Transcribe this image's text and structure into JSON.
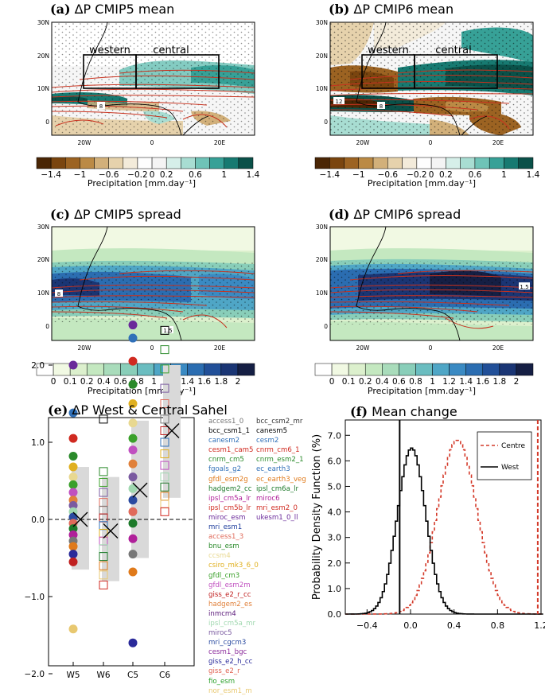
{
  "panels": {
    "a": {
      "label": "(a)",
      "title": "ΔP CMIP5 mean",
      "box_west": "western",
      "box_central": "central",
      "contour_label": "8"
    },
    "b": {
      "label": "(b)",
      "title": "ΔP CMIP6 mean",
      "box_west": "western",
      "box_central": "central",
      "contour_label_1": "12",
      "contour_label_2": "8"
    },
    "c": {
      "label": "(c)",
      "title": "ΔP CMIP5 spread",
      "contour_label_1": "8",
      "contour_label_2": "1.5"
    },
    "d": {
      "label": "(d)",
      "title": "ΔP CMIP6 spread",
      "contour_label": "1.5"
    },
    "e": {
      "label": "(e)",
      "title": "ΔP West & Central Sahel"
    },
    "f": {
      "label": "(f)",
      "title": "Mean change"
    }
  },
  "map_axes": {
    "ylabels": [
      "30N",
      "20N",
      "10N",
      "0"
    ],
    "xlabels": [
      "20W",
      "0",
      "20E"
    ]
  },
  "colorbar_mean": {
    "ticks": [
      "−1.4",
      "−1",
      "−0.6",
      "−0.2",
      "0",
      "0.2",
      "0.6",
      "1",
      "1.4"
    ],
    "label": "Precipitation [mm.day⁻¹]",
    "colors": [
      "#4a2605",
      "#7a450f",
      "#9c6322",
      "#bb8a45",
      "#d2b07a",
      "#e6d2ac",
      "#f3ebda",
      "#fdfdfd",
      "#f4f4f4",
      "#d6efe9",
      "#a8ddd2",
      "#6fc3b7",
      "#37a197",
      "#177a71",
      "#0a5149"
    ]
  },
  "colorbar_spread": {
    "ticks": [
      "0",
      "0.1",
      "0.2",
      "0.4",
      "0.6",
      "0.8",
      "1",
      "1.2",
      "1.4",
      "1.6",
      "1.8",
      "2"
    ],
    "label": "Precipitation [mm.day⁻¹]",
    "colors": [
      "#ffffff",
      "#f1f9e3",
      "#dcf0cd",
      "#c4e8c0",
      "#a9dcbb",
      "#89ceb9",
      "#6abdc0",
      "#4fa6c6",
      "#3a8ac3",
      "#2b6db1",
      "#214f98",
      "#1a3574",
      "#151f44"
    ]
  },
  "chart_data": [
    {
      "type": "scatter",
      "title": "ΔP West & Central Sahel",
      "categories": [
        "W5",
        "W6",
        "C5",
        "C6"
      ],
      "ylim": [
        -2.5,
        2.5
      ],
      "yticks": [
        "2.0",
        "1.0",
        "0.0",
        "−1.0",
        "−2.0"
      ],
      "cmip5_points": {
        "W5": [
          2.0,
          1.38,
          1.05,
          0.82,
          0.68,
          0.55,
          0.45,
          0.35,
          0.25,
          0.18,
          0.1,
          0.03,
          -0.05,
          -0.12,
          -0.2,
          -0.28,
          -0.35,
          -0.45,
          -0.55,
          -1.42
        ],
        "C5": [
          2.52,
          2.35,
          2.05,
          1.75,
          1.5,
          1.25,
          1.05,
          0.9,
          0.72,
          0.55,
          0.4,
          0.25,
          0.1,
          -0.05,
          -0.25,
          -0.45,
          -0.68,
          -1.6
        ]
      },
      "cmip6_points": {
        "W6": [
          1.3,
          0.62,
          0.48,
          0.35,
          0.22,
          0.12,
          0.02,
          -0.08,
          -0.18,
          -0.28,
          -0.38,
          -0.48,
          -0.6,
          -0.72,
          -0.85
        ],
        "C6": [
          2.45,
          2.2,
          1.95,
          1.7,
          1.5,
          1.3,
          1.15,
          1.0,
          0.85,
          0.7,
          0.55,
          0.42,
          0.3,
          0.2,
          0.1
        ]
      },
      "means": {
        "W5": 0.0,
        "W6": -0.15,
        "C5": 0.38,
        "C6": 1.15
      },
      "spread_boxes": {
        "W5": [
          -0.65,
          0.68
        ],
        "W6": [
          -0.8,
          0.55
        ],
        "C5": [
          -0.5,
          1.28
        ],
        "C6": [
          0.28,
          2.0
        ]
      }
    },
    {
      "type": "line",
      "title": "Mean change",
      "ylabel": "Probability Density Function (%)",
      "xlim": [
        -0.6,
        1.2
      ],
      "ylim": [
        0,
        7.6
      ],
      "xticks": [
        "−0.4",
        "0.0",
        "0.4",
        "0.8",
        "1.2"
      ],
      "yticks": [
        "0.0",
        "1.0",
        "2.0",
        "3.0",
        "4.0",
        "5.0",
        "6.0",
        "7.0"
      ],
      "legend_position": "top-right",
      "series": [
        {
          "name": "Centre",
          "color": "#d43a2a",
          "style": "dashed",
          "mean": 0.42,
          "sd": 0.18,
          "peak": 6.8
        },
        {
          "name": "West",
          "color": "#000000",
          "style": "solid",
          "mean": 0.0,
          "sd": 0.13,
          "peak": 6.5
        }
      ],
      "vlines": [
        {
          "x": -0.1,
          "color": "#000000"
        },
        {
          "x": 1.17,
          "color": "#d43a2a",
          "style": "dashed"
        }
      ]
    }
  ],
  "model_legend": {
    "col1": [
      {
        "name": "access1_0",
        "color": "#777777"
      },
      {
        "name": "bcc_csm1_1",
        "color": "#000000"
      },
      {
        "name": "canesm2",
        "color": "#3070b8"
      },
      {
        "name": "cesm1_cam5",
        "color": "#d02a20"
      },
      {
        "name": "cnrm_cm5",
        "color": "#2a8a2a"
      },
      {
        "name": "fgoals_g2",
        "color": "#3070b8"
      },
      {
        "name": "gfdl_esm2g",
        "color": "#e07a1a"
      },
      {
        "name": "hadgem2_cc",
        "color": "#1d7a2a"
      },
      {
        "name": "ipsl_cm5a_lr",
        "color": "#b0209a"
      },
      {
        "name": "ipsl_cm5b_lr",
        "color": "#d02a20"
      },
      {
        "name": "miroc_esm",
        "color": "#6a2a9a"
      },
      {
        "name": "mri_esm1",
        "color": "#1a3a9a"
      },
      {
        "name": "access1_3",
        "color": "#e06a5a"
      },
      {
        "name": "bnu_esm",
        "color": "#2a8a2a"
      },
      {
        "name": "ccsm4",
        "color": "#e8d890"
      },
      {
        "name": "csiro_mk3_6_0",
        "color": "#e0b020"
      },
      {
        "name": "gfdl_cm3",
        "color": "#3aa02a"
      },
      {
        "name": "gfdl_esm2m",
        "color": "#c050c0"
      },
      {
        "name": "giss_e2_r_cc",
        "color": "#c02020"
      },
      {
        "name": "hadgem2_es",
        "color": "#e0803a"
      },
      {
        "name": "inmcm4",
        "color": "#5a1a7a"
      },
      {
        "name": "ipsl_cm5a_mr",
        "color": "#a0d8b0"
      },
      {
        "name": "miroc5",
        "color": "#7a5aa0"
      },
      {
        "name": "mri_cgcm3",
        "color": "#2a4aa0"
      },
      {
        "name": "cesm1_bgc",
        "color": "#8a2a9a"
      },
      {
        "name": "giss_e2_h_cc",
        "color": "#2a2a9a"
      },
      {
        "name": "giss_e2_r",
        "color": "#e06050"
      },
      {
        "name": "fio_esm",
        "color": "#2aa02a"
      },
      {
        "name": "nor_esm1_m",
        "color": "#e8c870"
      }
    ],
    "col2": [
      {
        "name": "bcc_csm2_mr",
        "color": "#333333"
      },
      {
        "name": "canesm5",
        "color": "#000000"
      },
      {
        "name": "cesm2",
        "color": "#3070b8"
      },
      {
        "name": "cnrm_cm6_1",
        "color": "#d02a20"
      },
      {
        "name": "cnrm_esm2_1",
        "color": "#2a8a2a"
      },
      {
        "name": "ec_earth3",
        "color": "#3070b8"
      },
      {
        "name": "ec_earth3_veg",
        "color": "#e07a1a"
      },
      {
        "name": "ipsl_cm6a_lr",
        "color": "#1d7a2a"
      },
      {
        "name": "miroc6",
        "color": "#b0209a"
      },
      {
        "name": "mri_esm2_0",
        "color": "#d02a20"
      },
      {
        "name": "ukesm1_0_ll",
        "color": "#6a2a9a"
      }
    ]
  }
}
